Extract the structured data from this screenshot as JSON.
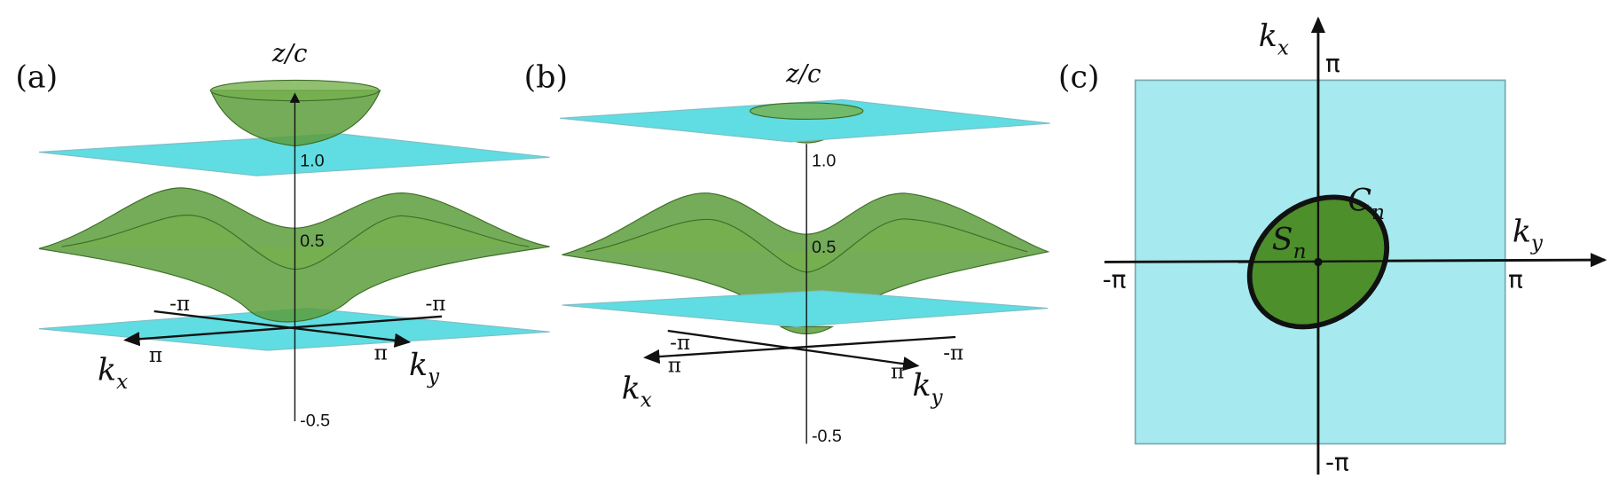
{
  "panels": [
    {
      "label": "(a)",
      "z_axis_label": "z/c",
      "z_ticks": [
        "1.0",
        "0.5",
        "-0.5"
      ],
      "kx_ticks": [
        "-π",
        "π"
      ],
      "ky_ticks": [
        "-π",
        "π"
      ],
      "kx_axis": {
        "main": "k",
        "sub": "x"
      },
      "ky_axis": {
        "main": "k",
        "sub": "y"
      }
    },
    {
      "label": "(b)",
      "z_axis_label": "z/c",
      "z_ticks": [
        "1.0",
        "0.5",
        "-0.5"
      ],
      "kx_ticks": [
        "-π",
        "π"
      ],
      "ky_ticks": [
        "-π",
        "π"
      ],
      "kx_axis": {
        "main": "k",
        "sub": "x"
      },
      "ky_axis": {
        "main": "k",
        "sub": "y"
      }
    },
    {
      "label": "(c)",
      "kx_ticks": [
        "π",
        "-π"
      ],
      "ky_ticks": [
        "-π",
        "π"
      ],
      "kx_axis": {
        "main": "k",
        "sub": "x"
      },
      "ky_axis": {
        "main": "k",
        "sub": "y"
      },
      "curve_label": {
        "main": "C",
        "sub": "n"
      },
      "region_label": {
        "main": "S",
        "sub": "n"
      }
    }
  ]
}
